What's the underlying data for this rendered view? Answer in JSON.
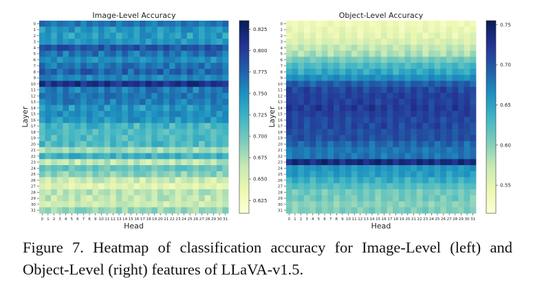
{
  "caption": "Figure 7.   Heatmap of classification accuracy for Image-Level (left) and Object-Level (right) features of LLaVA-v1.5.",
  "chart_data": [
    {
      "type": "heatmap",
      "title": "Image-Level Accuracy",
      "xlabel": "Head",
      "ylabel": "Layer",
      "x_ticks": [
        "0",
        "1",
        "2",
        "3",
        "4",
        "5",
        "6",
        "7",
        "8",
        "9",
        "10",
        "11",
        "12",
        "13",
        "14",
        "15",
        "16",
        "17",
        "18",
        "19",
        "20",
        "21",
        "22",
        "23",
        "24",
        "25",
        "26",
        "27",
        "28",
        "29",
        "30",
        "31"
      ],
      "y_ticks": [
        "0",
        "1",
        "2",
        "3",
        "4",
        "5",
        "6",
        "7",
        "8",
        "9",
        "10",
        "11",
        "12",
        "13",
        "14",
        "15",
        "16",
        "17",
        "18",
        "19",
        "20",
        "21",
        "22",
        "23",
        "24",
        "25",
        "26",
        "27",
        "28",
        "29",
        "30",
        "31"
      ],
      "colorbar_ticks": [
        0.825,
        0.8,
        0.775,
        0.75,
        0.725,
        0.7,
        0.675,
        0.65,
        0.625
      ],
      "colorbar_tick_labels": [
        "0.825",
        "0.800",
        "0.775",
        "0.750",
        "0.725",
        "0.700",
        "0.675",
        "0.650",
        "0.625"
      ],
      "vmin": 0.61,
      "vmax": 0.835,
      "colormap": "YlGnBu",
      "layer_mean_accuracy": [
        0.765,
        0.745,
        0.74,
        0.745,
        0.785,
        0.765,
        0.75,
        0.765,
        0.775,
        0.755,
        0.81,
        0.76,
        0.765,
        0.76,
        0.745,
        0.75,
        0.745,
        0.72,
        0.715,
        0.715,
        0.715,
        0.68,
        0.725,
        0.665,
        0.705,
        0.69,
        0.66,
        0.645,
        0.67,
        0.665,
        0.66,
        0.685
      ],
      "head_offsets": [
        0.012,
        0.004,
        -0.008,
        0.006,
        0.0,
        -0.006,
        0.01,
        -0.012,
        0.008,
        -0.004,
        0.006,
        0.0,
        0.012,
        -0.01,
        0.004,
        0.008,
        -0.006,
        0.01,
        -0.004,
        -0.012,
        0.006,
        0.0,
        0.004,
        -0.008,
        0.01,
        -0.002,
        0.006,
        -0.01,
        0.0,
        0.008,
        -0.004,
        0.012
      ]
    },
    {
      "type": "heatmap",
      "title": "Object-Level Accuracy",
      "xlabel": "Head",
      "ylabel": "Layer",
      "x_ticks": [
        "0",
        "1",
        "2",
        "3",
        "4",
        "5",
        "6",
        "7",
        "8",
        "9",
        "10",
        "11",
        "12",
        "13",
        "14",
        "15",
        "16",
        "17",
        "18",
        "19",
        "20",
        "21",
        "22",
        "23",
        "24",
        "25",
        "26",
        "27",
        "28",
        "29",
        "30",
        "31"
      ],
      "y_ticks": [
        "0",
        "1",
        "2",
        "3",
        "4",
        "5",
        "6",
        "7",
        "8",
        "9",
        "10",
        "11",
        "12",
        "13",
        "14",
        "15",
        "16",
        "17",
        "18",
        "19",
        "20",
        "21",
        "22",
        "23",
        "24",
        "25",
        "26",
        "27",
        "28",
        "29",
        "30",
        "31"
      ],
      "colorbar_ticks": [
        0.75,
        0.7,
        0.65,
        0.6,
        0.55
      ],
      "colorbar_tick_labels": [
        "0.75",
        "0.70",
        "0.65",
        "0.60",
        "0.55"
      ],
      "vmin": 0.515,
      "vmax": 0.755,
      "colormap": "YlGnBu",
      "layer_mean_accuracy": [
        0.54,
        0.545,
        0.55,
        0.56,
        0.575,
        0.585,
        0.61,
        0.63,
        0.645,
        0.665,
        0.695,
        0.71,
        0.715,
        0.715,
        0.72,
        0.715,
        0.71,
        0.71,
        0.705,
        0.705,
        0.69,
        0.68,
        0.68,
        0.735,
        0.66,
        0.655,
        0.64,
        0.625,
        0.61,
        0.61,
        0.6,
        0.605
      ],
      "head_offsets": [
        0.004,
        -0.006,
        0.008,
        -0.002,
        0.006,
        -0.008,
        0.002,
        0.01,
        -0.004,
        0.006,
        -0.01,
        0.004,
        0.0,
        0.008,
        -0.006,
        0.002,
        0.01,
        -0.004,
        0.006,
        -0.008,
        0.004,
        0.0,
        -0.006,
        0.008,
        -0.002,
        0.006,
        -0.01,
        0.004,
        0.002,
        -0.006,
        0.008,
        -0.004
      ]
    }
  ]
}
